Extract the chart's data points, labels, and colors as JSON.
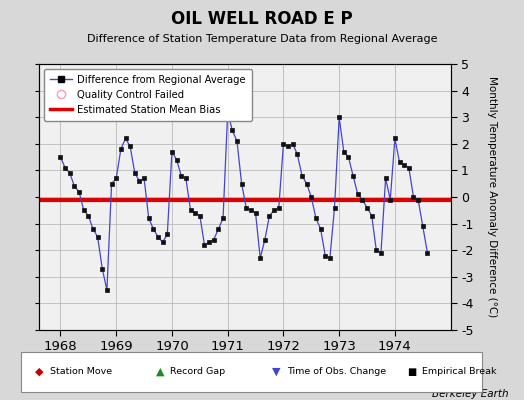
{
  "title": "OIL WELL ROAD E P",
  "subtitle": "Difference of Station Temperature Data from Regional Average",
  "ylabel_right": "Monthly Temperature Anomaly Difference (°C)",
  "ylim": [
    -5,
    5
  ],
  "xlim_start": 1967.62,
  "xlim_end": 1975.0,
  "bias_value": -0.1,
  "background_color": "#d8d8d8",
  "plot_bg_color": "#f0f0f0",
  "line_color": "#4444cc",
  "marker_color": "#111111",
  "bias_color": "#dd0000",
  "xticks": [
    1968,
    1969,
    1970,
    1971,
    1972,
    1973,
    1974
  ],
  "yticks": [
    -5,
    -4,
    -3,
    -2,
    -1,
    0,
    1,
    2,
    3,
    4,
    5
  ],
  "attribution": "Berkeley Earth",
  "values": [
    1.5,
    1.1,
    0.9,
    0.4,
    0.2,
    -0.5,
    -0.7,
    -1.2,
    -1.5,
    -2.7,
    -3.5,
    0.5,
    0.7,
    1.8,
    2.2,
    1.9,
    0.9,
    0.6,
    0.7,
    -0.8,
    -1.2,
    -1.5,
    -1.7,
    -1.4,
    1.7,
    1.4,
    0.8,
    0.7,
    -0.5,
    -0.6,
    -0.7,
    -1.8,
    -1.7,
    -1.6,
    -1.2,
    -0.8,
    3.2,
    2.5,
    2.1,
    0.5,
    -0.4,
    -0.5,
    -0.6,
    -2.3,
    -1.6,
    -0.7,
    -0.5,
    -0.4,
    2.0,
    1.9,
    2.0,
    1.6,
    0.8,
    0.5,
    0.0,
    -0.8,
    -1.2,
    -2.2,
    -2.3,
    -0.4,
    3.0,
    1.7,
    1.5,
    0.8,
    0.1,
    -0.1,
    -0.4,
    -0.7,
    -2.0,
    -2.1,
    0.7,
    -0.1,
    2.2,
    1.3,
    1.2,
    1.1,
    0.0,
    -0.1,
    -1.1,
    -2.1
  ]
}
